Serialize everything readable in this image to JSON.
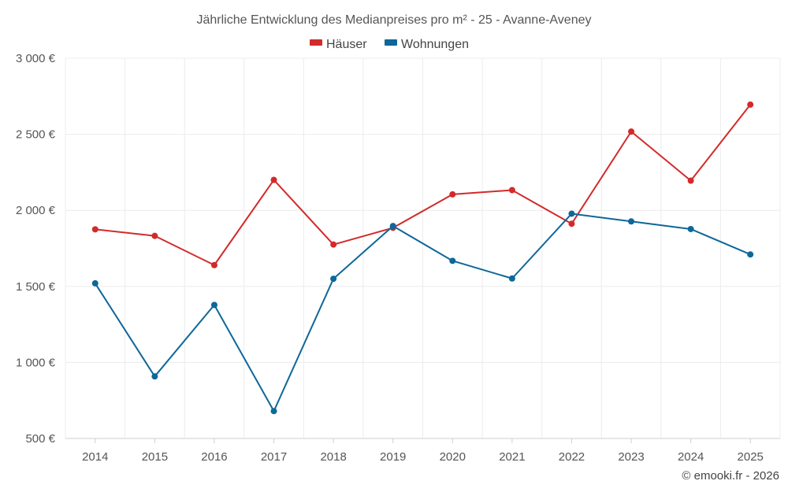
{
  "chart_data": {
    "type": "line",
    "title": "Jährliche Entwicklung des Medianpreises pro m² - 25 - Avanne-Aveney",
    "categories": [
      "2014",
      "2015",
      "2016",
      "2017",
      "2018",
      "2019",
      "2020",
      "2021",
      "2022",
      "2023",
      "2024",
      "2025"
    ],
    "series": [
      {
        "name": "Häuser",
        "color": "#d32a2a",
        "values": [
          1875,
          1832,
          1640,
          2200,
          1775,
          1885,
          2105,
          2133,
          1912,
          2518,
          2195,
          2695
        ]
      },
      {
        "name": "Wohnungen",
        "color": "#0e6799",
        "values": [
          1520,
          908,
          1378,
          680,
          1550,
          1897,
          1668,
          1552,
          1978,
          1927,
          1877,
          1710
        ]
      }
    ],
    "ylim": [
      500,
      3000
    ],
    "yticks": [
      500,
      1000,
      1500,
      2000,
      2500,
      3000
    ],
    "ytick_labels": [
      "500 €",
      "1 000 €",
      "1 500 €",
      "2 000 €",
      "2 500 €",
      "3 000 €"
    ],
    "xlabel": "",
    "ylabel": "",
    "grid": true,
    "legend": "top-center"
  },
  "credit": "© emooki.fr - 2026"
}
